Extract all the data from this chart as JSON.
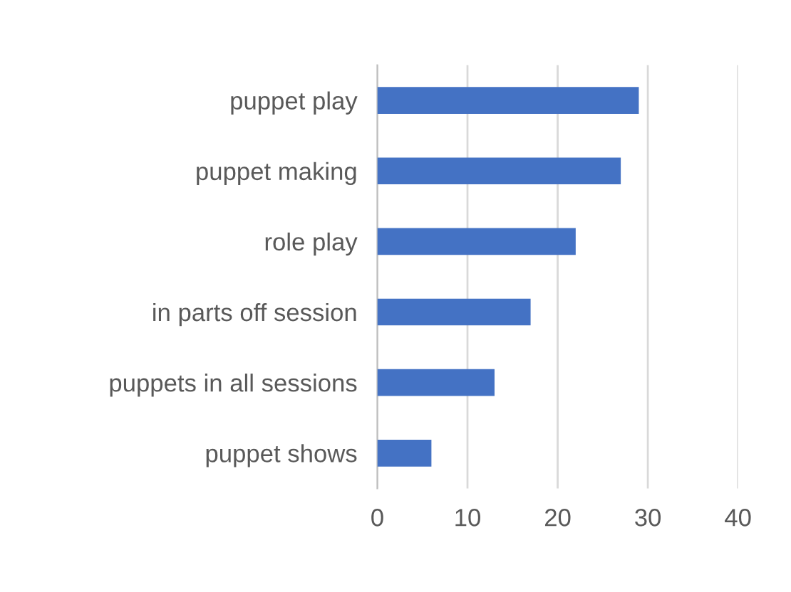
{
  "chart_data": {
    "type": "bar",
    "orientation": "horizontal",
    "categories": [
      "puppet play",
      "puppet making",
      "role play",
      "in parts off session",
      "puppets in all sessions",
      "puppet shows"
    ],
    "values": [
      29,
      27,
      22,
      17,
      13,
      6
    ],
    "color": "#4472c4",
    "xlim": [
      0,
      40
    ],
    "xticks": [
      0,
      10,
      20,
      30,
      40
    ],
    "grid": "x",
    "legend": false
  }
}
